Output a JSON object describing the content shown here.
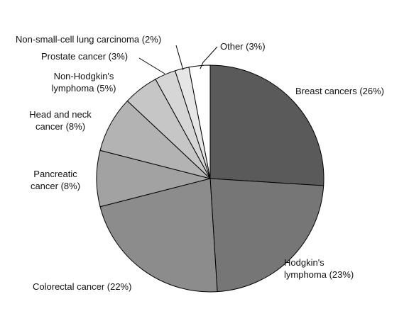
{
  "chart_data": {
    "type": "pie",
    "title": "",
    "slices": [
      {
        "label": "Breast cancers (26%)",
        "lines": [
          "Breast cancers (26%)"
        ],
        "value": 26,
        "color": "#5a5a5a"
      },
      {
        "label": "Hodgkin's lymphoma (23%)",
        "lines": [
          "Hodgkin's",
          "lymphoma (23%)"
        ],
        "value": 23,
        "color": "#767676"
      },
      {
        "label": "Colorectal cancer (22%)",
        "lines": [
          "Colorectal cancer (22%)"
        ],
        "value": 22,
        "color": "#8c8c8c"
      },
      {
        "label": "Pancreatic cancer (8%)",
        "lines": [
          "Pancreatic",
          "cancer (8%)"
        ],
        "value": 8,
        "color": "#a2a2a2"
      },
      {
        "label": "Head and neck cancer (8%)",
        "lines": [
          "Head and neck",
          "cancer (8%)"
        ],
        "value": 8,
        "color": "#b3b3b3"
      },
      {
        "label": "Non-Hodgkin's lymphoma (5%)",
        "lines": [
          "Non-Hodgkin's",
          "lymphoma (5%)"
        ],
        "value": 5,
        "color": "#c6c6c6"
      },
      {
        "label": "Prostate cancer (3%)",
        "lines": [
          "Prostate cancer (3%)"
        ],
        "value": 3,
        "color": "#d6d6d6"
      },
      {
        "label": "Non-small-cell lung carcinoma (2%)",
        "lines": [
          "Non-small-cell lung carcinoma (2%)"
        ],
        "value": 2,
        "color": "#e6e6e6"
      },
      {
        "label": "Other (3%)",
        "lines": [
          "Other (3%)"
        ],
        "value": 3,
        "color": "#ffffff"
      }
    ]
  }
}
